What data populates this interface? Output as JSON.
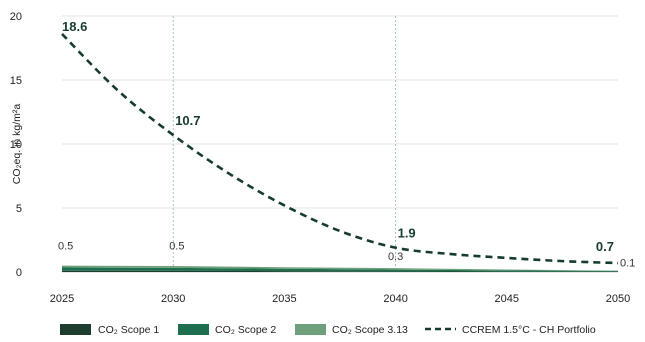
{
  "chart_data": {
    "type": "line",
    "ylabel": "CO₂eq. in kg/m²a",
    "xlabel": "",
    "title": "",
    "xlim": [
      2025,
      2050
    ],
    "ylim": [
      0,
      20
    ],
    "x_ticks": [
      2025,
      2030,
      2035,
      2040,
      2045,
      2050
    ],
    "y_ticks": [
      0,
      5,
      10,
      15,
      20
    ],
    "vertical_reference_lines": [
      2030,
      2040
    ],
    "grid": "horizontal",
    "legend_position": "bottom",
    "colors": {
      "scope1": "#1f3d2e",
      "scope2": "#1f6e4e",
      "scope3": "#6fa07c",
      "pathway": "#173c2e",
      "grid": "#e3e3e3",
      "refline": "#8fb4c4"
    },
    "series": [
      {
        "name": "CO₂ Scope 1",
        "type": "area",
        "x": [
          2025,
          2030,
          2035,
          2040,
          2045,
          2050
        ],
        "values": [
          0.1,
          0.09,
          0.07,
          0.05,
          0.03,
          0.02
        ]
      },
      {
        "name": "CO₂ Scope 2",
        "type": "area",
        "x": [
          2025,
          2030,
          2035,
          2040,
          2045,
          2050
        ],
        "values": [
          0.25,
          0.23,
          0.18,
          0.14,
          0.1,
          0.06
        ]
      },
      {
        "name": "CO₂ Scope 3.13",
        "type": "area",
        "x": [
          2025,
          2030,
          2035,
          2040,
          2045,
          2050
        ],
        "values": [
          0.15,
          0.15,
          0.12,
          0.11,
          0.07,
          0.03
        ]
      },
      {
        "name": "CCREM 1.5°C - CH Portfolio",
        "type": "line",
        "style": "dashed",
        "x": [
          2025,
          2027.5,
          2030,
          2032.5,
          2035,
          2037.5,
          2040,
          2042.5,
          2045,
          2047.5,
          2050
        ],
        "values": [
          18.6,
          14.2,
          10.7,
          7.7,
          5.2,
          3.2,
          1.9,
          1.4,
          1.1,
          0.85,
          0.7
        ]
      }
    ],
    "pathway_labels": [
      {
        "x": 2025,
        "y": 18.6,
        "text": "18.6"
      },
      {
        "x": 2030,
        "y": 10.7,
        "text": "10.7"
      },
      {
        "x": 2040,
        "y": 1.9,
        "text": "1.9"
      },
      {
        "x": 2050,
        "y": 0.7,
        "text": "0.7"
      }
    ],
    "total_labels": [
      {
        "x": 2025,
        "y": 0.5,
        "text": "0.5"
      },
      {
        "x": 2030,
        "y": 0.5,
        "text": "0.5"
      },
      {
        "x": 2040,
        "y": 0.3,
        "text": "0.3"
      },
      {
        "x": 2050,
        "y": 0.1,
        "text": "0.1"
      }
    ]
  }
}
